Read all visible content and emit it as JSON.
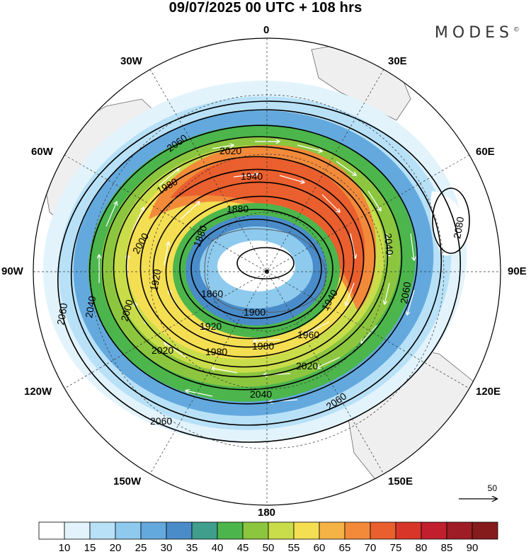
{
  "header": {
    "title": "09/07/2025  00 UTC  + 108 hrs"
  },
  "brand": {
    "name": "MODES",
    "mark": "©"
  },
  "longitude_labels": {
    "n0": "0",
    "n30e": "30E",
    "n60e": "60E",
    "n90e": "90E",
    "n120e": "120E",
    "n150e": "150E",
    "n180": "180",
    "n150w": "150W",
    "n120w": "120W",
    "n90w": "90W",
    "n60w": "60W",
    "n30w": "30W"
  },
  "contours": {
    "labels": [
      "1860",
      "1880",
      "1900",
      "1920",
      "1940",
      "1960",
      "1980",
      "2000",
      "2020",
      "2040",
      "2060",
      "2080"
    ]
  },
  "reference_vector": {
    "label": "50"
  },
  "colorbar": {
    "ticks": [
      "10",
      "15",
      "20",
      "25",
      "30",
      "35",
      "40",
      "45",
      "50",
      "55",
      "60",
      "65",
      "70",
      "75",
      "80",
      "85",
      "90"
    ],
    "colors": [
      "#ffffff",
      "#e2f3fc",
      "#b8e1f7",
      "#8dcaee",
      "#63a9de",
      "#4a8cc9",
      "#3f9e8c",
      "#4cb54b",
      "#8cc63f",
      "#c9dd4a",
      "#f4de52",
      "#f6b345",
      "#f28a3a",
      "#ea5f2e",
      "#d9362a",
      "#c11f2d",
      "#9e1c25",
      "#851b1b"
    ]
  }
}
